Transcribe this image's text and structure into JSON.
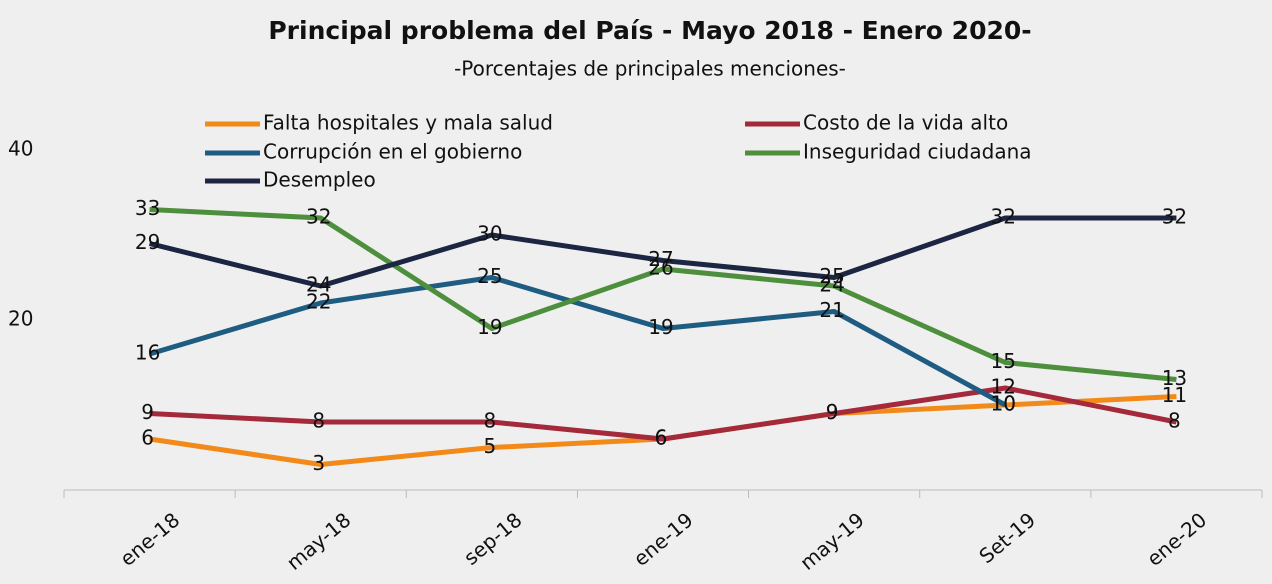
{
  "chart_data": {
    "type": "line",
    "title": "Principal problema del País  - Mayo 2018 - Enero 2020-",
    "subtitle": "-Porcentajes de principales menciones-",
    "categories": [
      "ene-18",
      "may-18",
      "sep-18",
      "ene-19",
      "may-19",
      "Set-19",
      "ene-20"
    ],
    "series": [
      {
        "name": "Falta hospitales y mala salud",
        "color": "#f28a1a",
        "values": [
          6,
          3,
          5,
          6,
          9,
          10,
          11
        ]
      },
      {
        "name": "Costo de la vida alto",
        "color": "#a3293b",
        "values": [
          9,
          8,
          8,
          6,
          9,
          12,
          8
        ]
      },
      {
        "name": "Corrupción en el gobierno",
        "color": "#1f5c82",
        "values": [
          16,
          22,
          25,
          19,
          21,
          10,
          null
        ]
      },
      {
        "name": "Inseguridad ciudadana",
        "color": "#4e8f3e",
        "values": [
          33,
          32,
          19,
          26,
          24,
          15,
          13
        ]
      },
      {
        "name": "Desempleo",
        "color": "#1c2541",
        "values": [
          29,
          24,
          30,
          27,
          25,
          32,
          32
        ]
      }
    ],
    "ylim": [
      0,
      40
    ],
    "yticks": [
      20,
      40
    ],
    "grid": false
  }
}
